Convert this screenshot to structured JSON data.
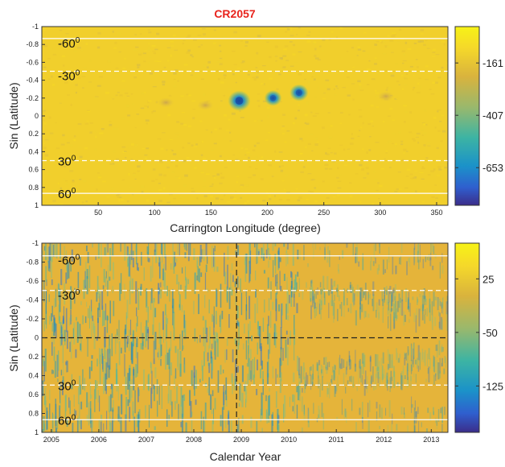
{
  "chart_data": [
    {
      "type": "heatmap",
      "title": "CR2057",
      "xlabel": "Carrington Longitude (degree)",
      "ylabel": "Sin (Latitude)",
      "xlim": [
        0,
        360
      ],
      "ylim": [
        -1,
        1
      ],
      "y_inverted": true,
      "xticks": [
        "50",
        "100",
        "150",
        "200",
        "250",
        "300",
        "350"
      ],
      "yticks": [
        "-1",
        "-0.8",
        "-0.6",
        "-0.4",
        "-0.2",
        "0",
        "0.2",
        "0.4",
        "0.6",
        "0.8",
        "1"
      ],
      "colorbar_ticks": [
        "-161",
        "-407",
        "-653"
      ],
      "colorbar_range": [
        -830,
        10
      ],
      "latitude_lines": [
        {
          "label": "-60",
          "sin_lat": -0.866,
          "style": "solid"
        },
        {
          "label": "-30",
          "sin_lat": -0.5,
          "style": "dashed"
        },
        {
          "label": "30",
          "sin_lat": 0.5,
          "style": "dashed"
        },
        {
          "label": "60",
          "sin_lat": 0.866,
          "style": "solid"
        }
      ],
      "features": [
        {
          "lon": 175,
          "sin_lat": -0.17,
          "strength": 1.0
        },
        {
          "lon": 205,
          "sin_lat": -0.2,
          "strength": 0.6
        },
        {
          "lon": 228,
          "sin_lat": -0.26,
          "strength": 0.7
        },
        {
          "lon": 110,
          "sin_lat": -0.15,
          "strength": 0.25
        },
        {
          "lon": 145,
          "sin_lat": -0.12,
          "strength": 0.2
        },
        {
          "lon": 305,
          "sin_lat": -0.22,
          "strength": 0.3
        }
      ],
      "colors": {
        "background": "#f0cd2c",
        "mid": "#d9a83f",
        "strong": "#1479c4",
        "darkest": "#2a2a8c"
      }
    },
    {
      "type": "heatmap",
      "xlabel": "Calendar Year",
      "ylabel": "Sin (Latitude)",
      "xlim": [
        2004.8,
        2013.35
      ],
      "ylim": [
        -1,
        1
      ],
      "y_inverted": true,
      "xticks": [
        "2005",
        "2006",
        "2007",
        "2008",
        "2009",
        "2010",
        "2011",
        "2012",
        "2013"
      ],
      "yticks": [
        "-1",
        "-0.8",
        "-0.6",
        "-0.4",
        "-0.2",
        "0",
        "0.2",
        "0.4",
        "0.6",
        "0.8",
        "1"
      ],
      "colorbar_ticks": [
        "25",
        "-50",
        "-125"
      ],
      "colorbar_range": [
        -190,
        75
      ],
      "equator_dashed": true,
      "minimum_marker_year": 2008.9,
      "latitude_lines": [
        {
          "label": "-60",
          "sin_lat": -0.866,
          "style": "solid"
        },
        {
          "label": "-30",
          "sin_lat": -0.5,
          "style": "dashed"
        },
        {
          "label": "30",
          "sin_lat": 0.5,
          "style": "dashed"
        },
        {
          "label": "60",
          "sin_lat": 0.866,
          "style": "solid"
        }
      ],
      "colors": {
        "background": "#e8b437",
        "mid": "#7fb58a",
        "strong": "#1c8fb8",
        "darkest": "#2a2a8c"
      }
    }
  ]
}
